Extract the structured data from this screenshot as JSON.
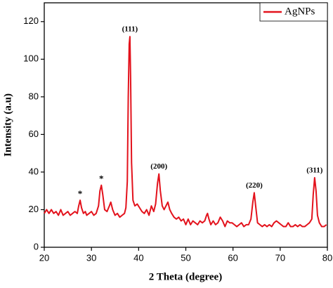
{
  "chart_data": {
    "type": "line",
    "xlabel": "2 Theta (degree)",
    "ylabel": "Intensity (a.u)",
    "xlim": [
      20,
      80
    ],
    "ylim": [
      0,
      130
    ],
    "xticks": [
      20,
      30,
      40,
      50,
      60,
      70,
      80
    ],
    "yticks": [
      0,
      20,
      40,
      60,
      80,
      100,
      120
    ],
    "legend": "upper right",
    "series": [
      {
        "name": "AgNPs",
        "color": "#e3121c",
        "x": [
          20,
          20.5,
          21,
          21.5,
          22,
          22.5,
          23,
          23.5,
          24,
          24.5,
          25,
          25.5,
          26,
          26.5,
          27,
          27.3,
          27.6,
          27.9,
          28.3,
          28.7,
          29,
          29.5,
          30,
          30.5,
          31,
          31.5,
          31.8,
          32.1,
          32.4,
          32.8,
          33.3,
          33.8,
          34.1,
          34.5,
          35,
          35.5,
          36,
          36.5,
          37,
          37.3,
          37.6,
          37.8,
          38,
          38.15,
          38.3,
          38.5,
          38.8,
          39.2,
          39.7,
          40.2,
          40.7,
          41.2,
          41.7,
          42.2,
          42.7,
          43.2,
          43.6,
          44,
          44.3,
          44.6,
          45,
          45.4,
          45.8,
          46.2,
          46.6,
          47,
          47.5,
          48,
          48.5,
          49,
          49.5,
          50,
          50.5,
          51,
          51.5,
          52,
          52.5,
          53,
          53.5,
          54,
          54.4,
          54.6,
          54.9,
          55.3,
          55.8,
          56.3,
          56.8,
          57.3,
          57.8,
          58.3,
          58.8,
          59.3,
          59.8,
          60.3,
          60.8,
          61.3,
          61.8,
          62.3,
          62.8,
          63.3,
          63.8,
          64.2,
          64.5,
          64.8,
          65.2,
          65.7,
          66.2,
          66.7,
          67.2,
          67.7,
          68.2,
          68.7,
          69.2,
          69.7,
          70.2,
          70.7,
          71.2,
          71.7,
          72.2,
          72.7,
          73.2,
          73.7,
          74.2,
          74.7,
          75.2,
          75.7,
          76.2,
          76.7,
          77,
          77.3,
          77.6,
          77.9,
          78.3,
          78.8,
          79.3,
          79.8
        ],
        "values": [
          18,
          20,
          18,
          20,
          18,
          19,
          17,
          20,
          17,
          18,
          19,
          17,
          18,
          19,
          18,
          22,
          25,
          21,
          18,
          19,
          17,
          18,
          19,
          17,
          18,
          22,
          30,
          33,
          28,
          20,
          19,
          22,
          24,
          20,
          17,
          18,
          16,
          17,
          18,
          21,
          35,
          80,
          108,
          112,
          90,
          45,
          25,
          22,
          23,
          21,
          19,
          18,
          20,
          17,
          22,
          19,
          23,
          34,
          39,
          30,
          22,
          20,
          22,
          24,
          20,
          18,
          16,
          15,
          16,
          14,
          15,
          12,
          15,
          12,
          14,
          13,
          12,
          14,
          13,
          14,
          17,
          18,
          15,
          12,
          14,
          12,
          13,
          16,
          14,
          11,
          14,
          13,
          13,
          12,
          11,
          12,
          13,
          11,
          12,
          12,
          15,
          24,
          29,
          22,
          13,
          12,
          11,
          12,
          11,
          12,
          11,
          13,
          14,
          13,
          12,
          11,
          11,
          13,
          11,
          11,
          12,
          11,
          12,
          11,
          11,
          12,
          13,
          15,
          28,
          37,
          30,
          17,
          13,
          11,
          11,
          12
        ]
      }
    ],
    "annotations": [
      {
        "text": "*",
        "x": 27.6,
        "y": 25
      },
      {
        "text": "*",
        "x": 32.1,
        "y": 33
      },
      {
        "text": "(111)",
        "x": 38.15,
        "y": 112
      },
      {
        "text": "(200)",
        "x": 44.3,
        "y": 39
      },
      {
        "text": "(220)",
        "x": 64.5,
        "y": 29
      },
      {
        "text": "(311)",
        "x": 77.3,
        "y": 37
      }
    ]
  }
}
